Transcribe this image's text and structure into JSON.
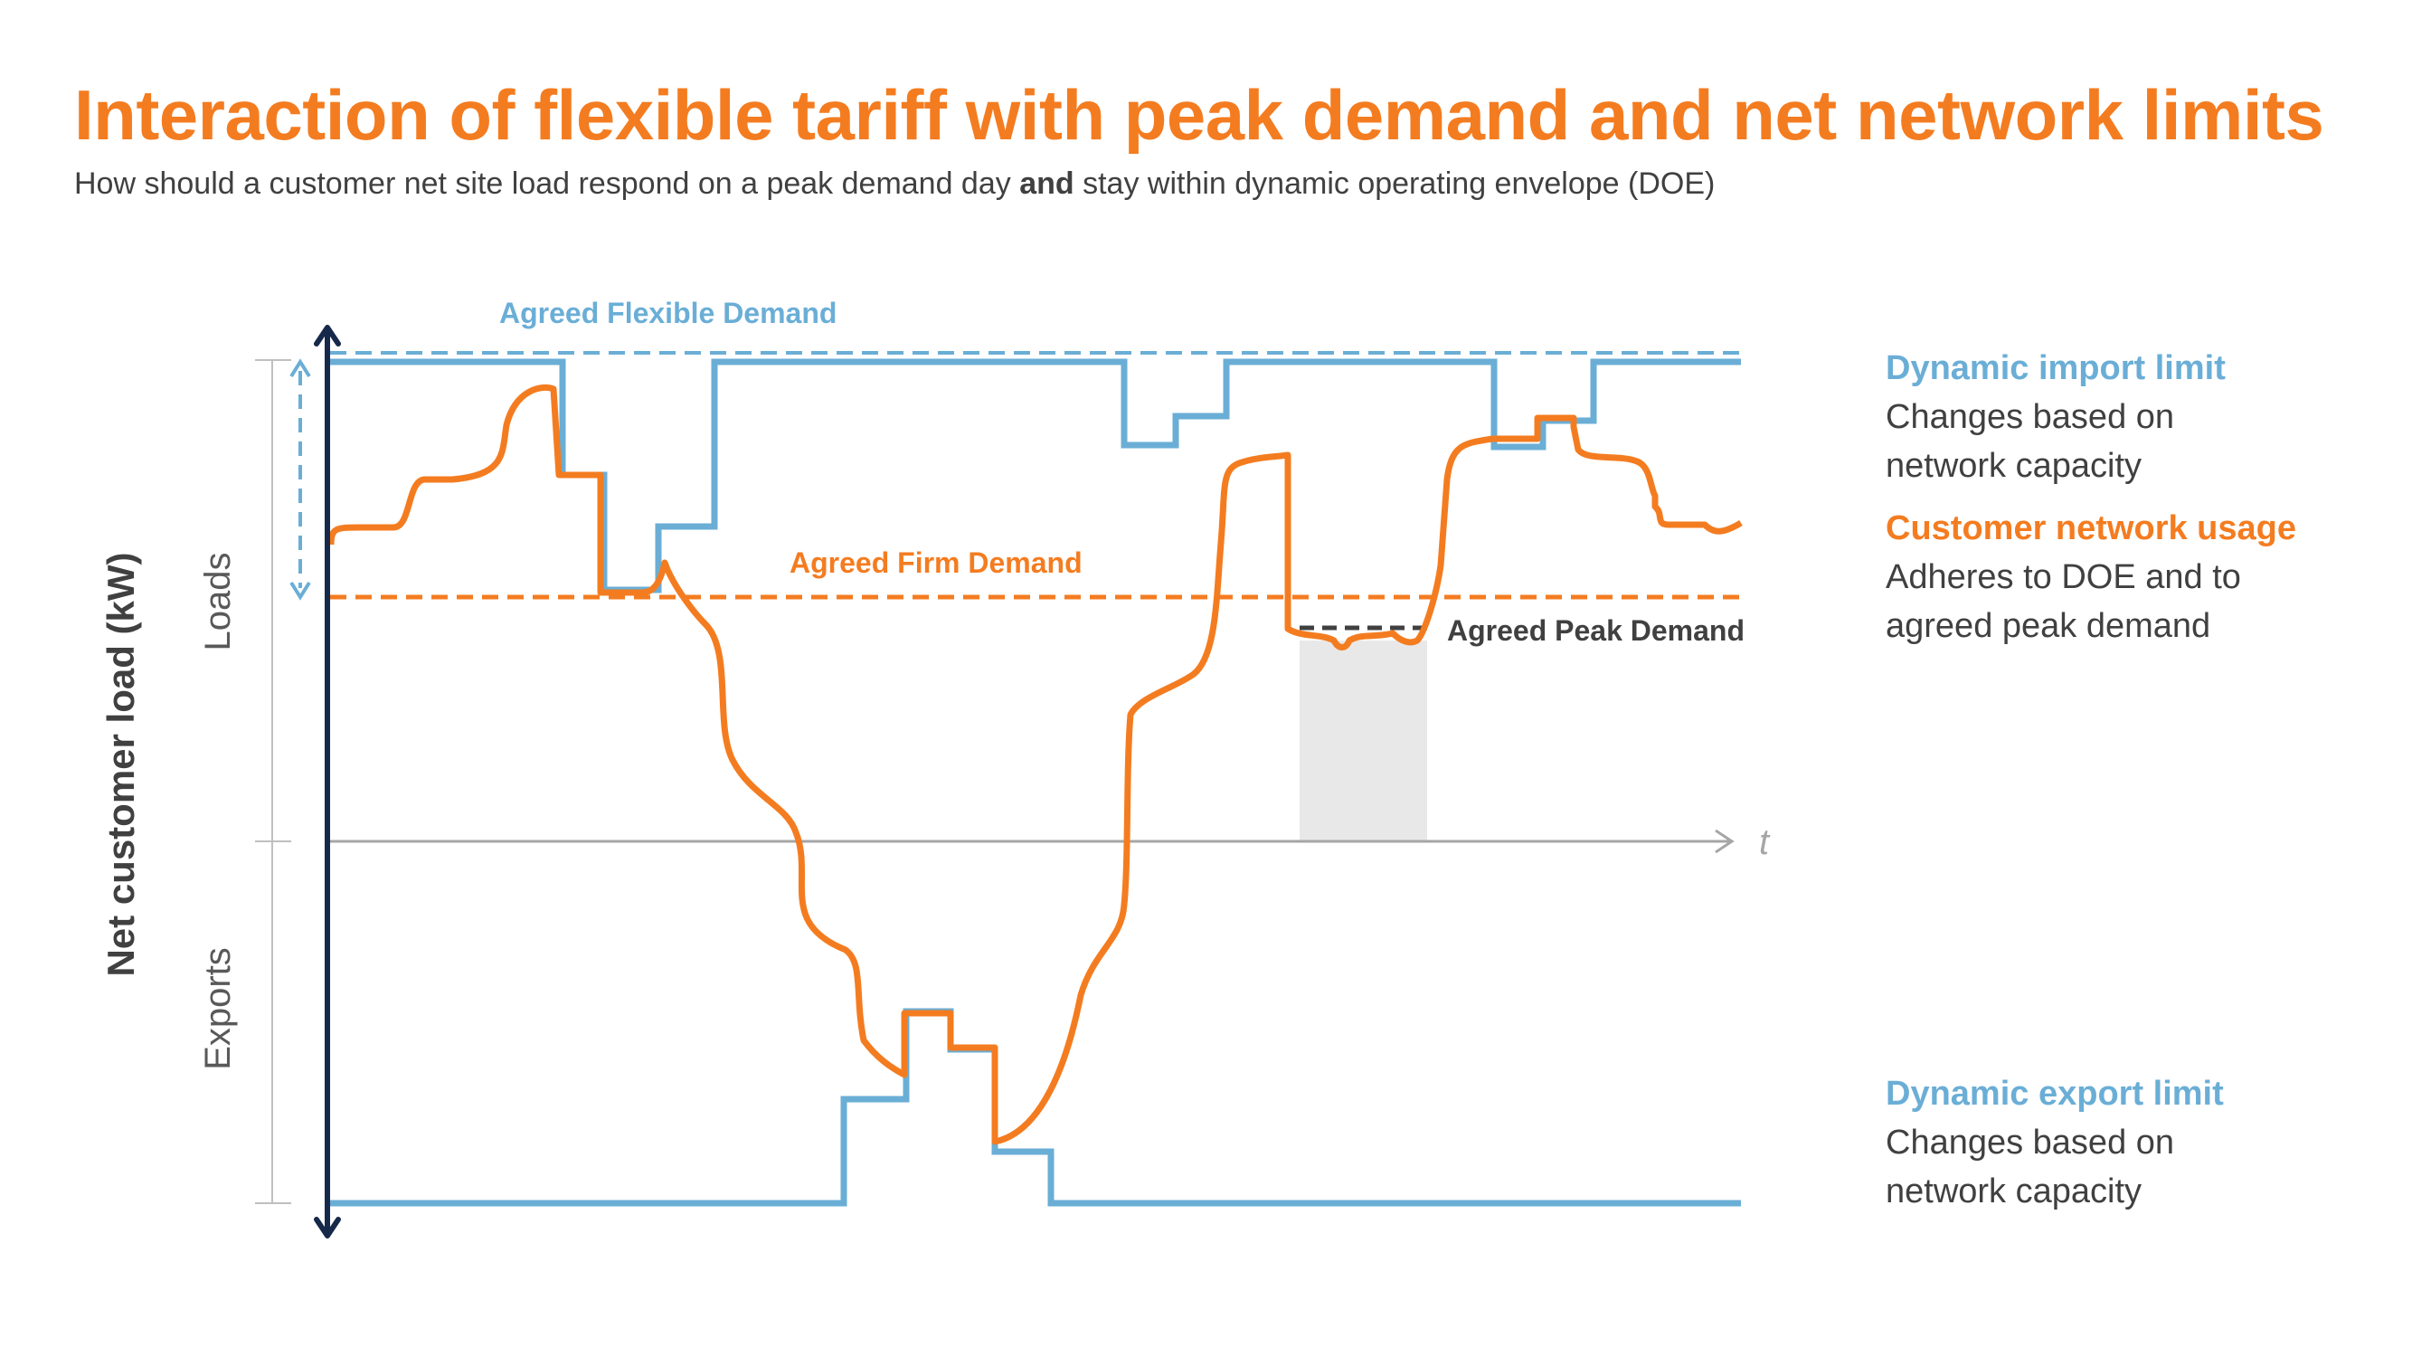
{
  "title": "Interaction of flexible tariff with peak demand and net network limits",
  "subtitle": {
    "before": "How should a customer net site load respond on a peak demand day ",
    "bold": "and",
    "after": " stay within dynamic operating envelope (DOE)"
  },
  "axis": {
    "y_label": "Net customer load (kW)",
    "loads_label": "Loads",
    "exports_label": "Exports",
    "t_label": "t"
  },
  "annotations": {
    "agreed_flexible_demand": "Agreed Flexible Demand",
    "agreed_firm_demand": "Agreed Firm Demand",
    "agreed_peak_demand": "Agreed Peak Demand"
  },
  "legend": {
    "import": {
      "title": "Dynamic import limit",
      "lines": [
        "Changes based on",
        "network capacity"
      ]
    },
    "usage": {
      "title": "Customer network usage",
      "lines": [
        "Adheres to DOE and to",
        "agreed peak demand"
      ]
    },
    "export": {
      "title": "Dynamic export limit",
      "lines": [
        "Changes based on",
        "network capacity"
      ]
    }
  },
  "colors": {
    "blue": "#6AAED6",
    "orange": "#F47C20",
    "navy": "#17294A",
    "grey_text": "#404040",
    "axis_grey": "#A6A6A6",
    "shade": "#E8E8E8"
  }
}
